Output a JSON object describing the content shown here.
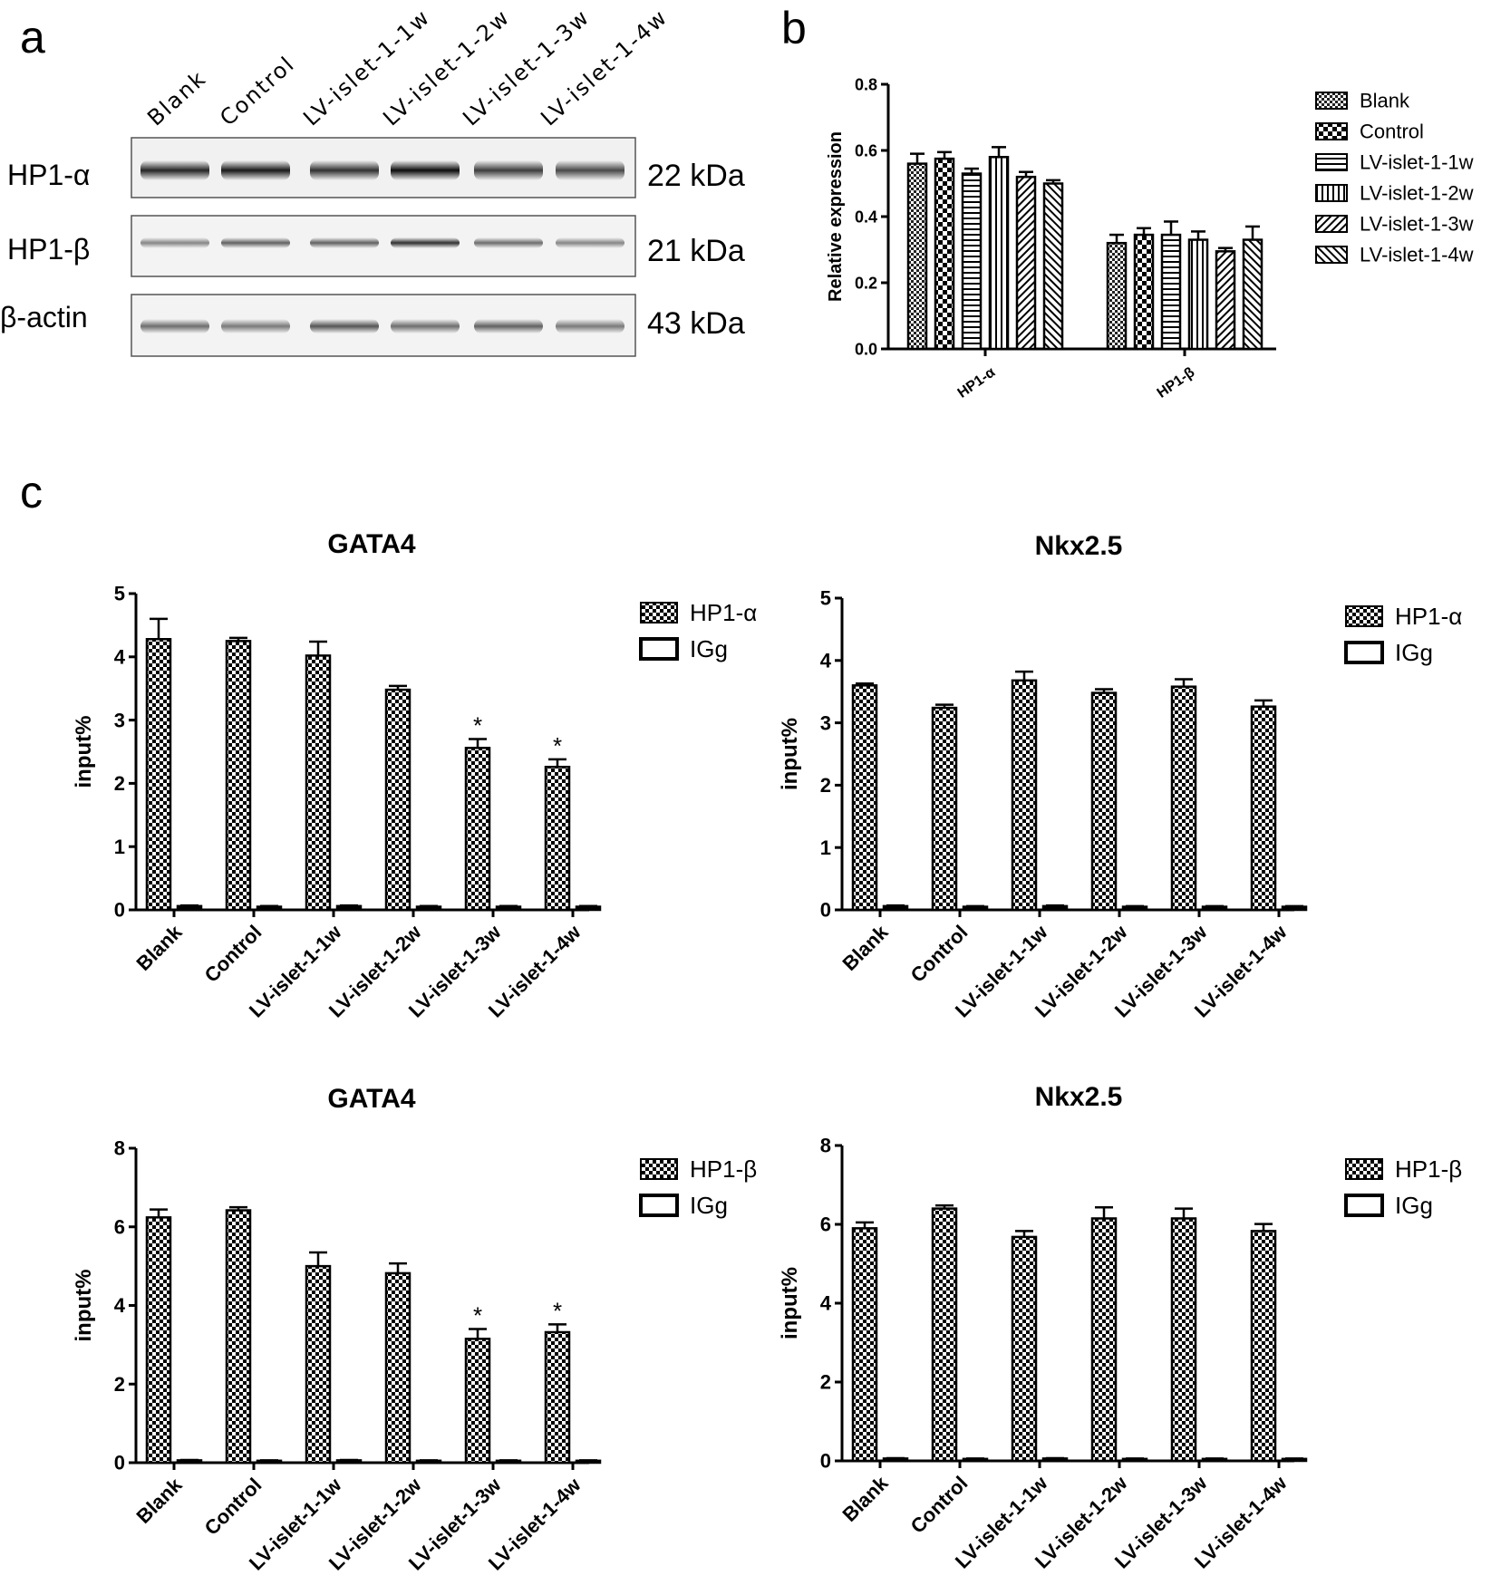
{
  "panel_labels": {
    "a": "a",
    "b": "b",
    "c": "c"
  },
  "blot": {
    "lanes": [
      "Blank",
      "Control",
      "LV-islet-1-1w",
      "LV-islet-1-2w",
      "LV-islet-1-3w",
      "LV-islet-1-4w"
    ],
    "rows": [
      {
        "protein": "HP1-α",
        "size": "22 kDa"
      },
      {
        "protein": "HP1-β",
        "size": "21 kDa"
      },
      {
        "protein": "β-actin",
        "size": "43 kDa"
      }
    ]
  },
  "chart_data": [
    {
      "id": "b",
      "type": "bar",
      "title": "",
      "xlabel": "",
      "ylabel": "Relative expression",
      "ylim": [
        0,
        0.8
      ],
      "yticks": [
        "0.0",
        "0.2",
        "0.4",
        "0.6",
        "0.8"
      ],
      "categories": [
        "HP1-α",
        "HP1-β"
      ],
      "legend_position": "right",
      "series": [
        {
          "name": "Blank",
          "values": [
            0.56,
            0.32
          ],
          "errors": [
            0.03,
            0.025
          ]
        },
        {
          "name": "Control",
          "values": [
            0.575,
            0.345
          ],
          "errors": [
            0.02,
            0.02
          ]
        },
        {
          "name": "LV-islet-1-1w",
          "values": [
            0.53,
            0.345
          ],
          "errors": [
            0.015,
            0.04
          ]
        },
        {
          "name": "LV-islet-1-2w",
          "values": [
            0.58,
            0.33
          ],
          "errors": [
            0.03,
            0.025
          ]
        },
        {
          "name": "LV-islet-1-3w",
          "values": [
            0.52,
            0.295
          ],
          "errors": [
            0.015,
            0.01
          ]
        },
        {
          "name": "LV-islet-1-4w",
          "values": [
            0.5,
            0.33
          ],
          "errors": [
            0.01,
            0.04
          ]
        }
      ]
    },
    {
      "id": "c1",
      "type": "bar",
      "title": "GATA4",
      "xlabel": "",
      "ylabel": "input%",
      "ylim": [
        0,
        5
      ],
      "yticks": [
        "0",
        "1",
        "2",
        "3",
        "4",
        "5"
      ],
      "categories": [
        "Blank",
        "Control",
        "LV-islet-1-1w",
        "LV-islet-1-2w",
        "LV-islet-1-3w",
        "LV-islet-1-4w"
      ],
      "legend_position": "top-right",
      "series": [
        {
          "name": "HP1-α",
          "values": [
            4.28,
            4.25,
            4.02,
            3.48,
            2.56,
            2.26
          ],
          "errors": [
            0.32,
            0.05,
            0.22,
            0.06,
            0.14,
            0.12
          ]
        },
        {
          "name": "IGg",
          "values": [
            0.06,
            0.05,
            0.06,
            0.05,
            0.05,
            0.05
          ],
          "errors": [
            0.01,
            0.01,
            0.01,
            0.01,
            0.01,
            0.01
          ]
        }
      ],
      "annotations": [
        "",
        "",
        "",
        "",
        "*",
        "*"
      ]
    },
    {
      "id": "c2",
      "type": "bar",
      "title": "Nkx2.5",
      "xlabel": "",
      "ylabel": "input%",
      "ylim": [
        0,
        5
      ],
      "yticks": [
        "0",
        "1",
        "2",
        "3",
        "4",
        "5"
      ],
      "categories": [
        "Blank",
        "Control",
        "LV-islet-1-1w",
        "LV-islet-1-2w",
        "LV-islet-1-3w",
        "LV-islet-1-4w"
      ],
      "legend_position": "top-right",
      "series": [
        {
          "name": "HP1-α",
          "values": [
            3.6,
            3.24,
            3.68,
            3.48,
            3.58,
            3.26
          ],
          "errors": [
            0.03,
            0.05,
            0.14,
            0.06,
            0.12,
            0.1
          ]
        },
        {
          "name": "IGg",
          "values": [
            0.06,
            0.05,
            0.06,
            0.05,
            0.05,
            0.05
          ],
          "errors": [
            0.01,
            0.01,
            0.01,
            0.01,
            0.01,
            0.01
          ]
        }
      ],
      "annotations": [
        "",
        "",
        "",
        "",
        "",
        ""
      ]
    },
    {
      "id": "c3",
      "type": "bar",
      "title": "GATA4",
      "xlabel": "",
      "ylabel": "input%",
      "ylim": [
        0,
        8
      ],
      "yticks": [
        "0",
        "2",
        "4",
        "6",
        "8"
      ],
      "categories": [
        "Blank",
        "Control",
        "LV-islet-1-1w",
        "LV-islet-1-2w",
        "LV-islet-1-3w",
        "LV-islet-1-4w"
      ],
      "legend_position": "top-right",
      "series": [
        {
          "name": "HP1-β",
          "values": [
            6.24,
            6.42,
            5.0,
            4.82,
            3.15,
            3.32
          ],
          "errors": [
            0.2,
            0.08,
            0.35,
            0.25,
            0.25,
            0.2
          ]
        },
        {
          "name": "IGg",
          "values": [
            0.06,
            0.05,
            0.06,
            0.05,
            0.05,
            0.05
          ],
          "errors": [
            0.01,
            0.01,
            0.01,
            0.01,
            0.01,
            0.01
          ]
        }
      ],
      "annotations": [
        "",
        "",
        "",
        "",
        "*",
        "*"
      ]
    },
    {
      "id": "c4",
      "type": "bar",
      "title": "Nkx2.5",
      "xlabel": "",
      "ylabel": "input%",
      "ylim": [
        0,
        8
      ],
      "yticks": [
        "0",
        "2",
        "4",
        "6",
        "8"
      ],
      "categories": [
        "Blank",
        "Control",
        "LV-islet-1-1w",
        "LV-islet-1-2w",
        "LV-islet-1-3w",
        "LV-islet-1-4w"
      ],
      "legend_position": "top-right",
      "series": [
        {
          "name": "HP1-β",
          "values": [
            5.9,
            6.4,
            5.68,
            6.15,
            6.15,
            5.83
          ],
          "errors": [
            0.15,
            0.08,
            0.15,
            0.28,
            0.25,
            0.18
          ]
        },
        {
          "name": "IGg",
          "values": [
            0.06,
            0.05,
            0.06,
            0.05,
            0.05,
            0.05
          ],
          "errors": [
            0.01,
            0.01,
            0.01,
            0.01,
            0.01,
            0.01
          ]
        }
      ],
      "annotations": [
        "",
        "",
        "",
        "",
        "",
        ""
      ]
    }
  ]
}
